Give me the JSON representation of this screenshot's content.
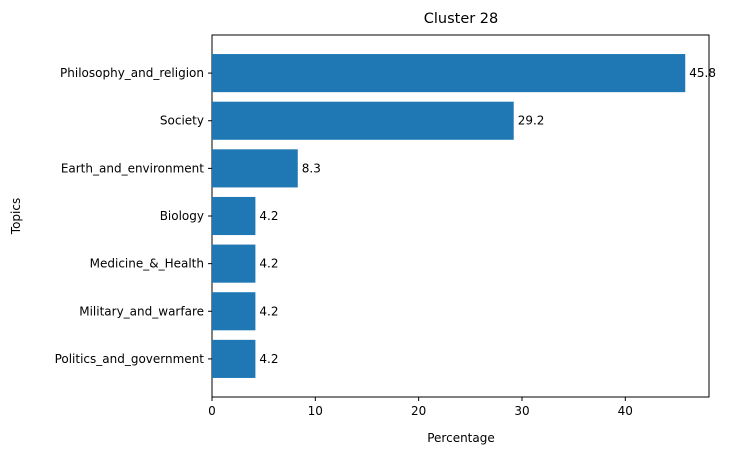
{
  "chart_data": {
    "type": "bar",
    "orientation": "horizontal",
    "title": "Cluster 28",
    "xlabel": "Percentage",
    "ylabel": "Topics",
    "categories": [
      "Philosophy_and_religion",
      "Society",
      "Earth_and_environment",
      "Biology",
      "Medicine_&_Health",
      "Military_and_warfare",
      "Politics_and_government"
    ],
    "values": [
      45.8,
      29.2,
      8.3,
      4.2,
      4.2,
      4.2,
      4.2
    ],
    "value_labels": [
      "45.8",
      "29.2",
      "8.3",
      "4.2",
      "4.2",
      "4.2",
      "4.2"
    ],
    "xlim": [
      0,
      48.1
    ],
    "xticks": [
      0,
      10,
      20,
      30,
      40
    ],
    "grid": false,
    "bar_color": "#1f77b4"
  }
}
